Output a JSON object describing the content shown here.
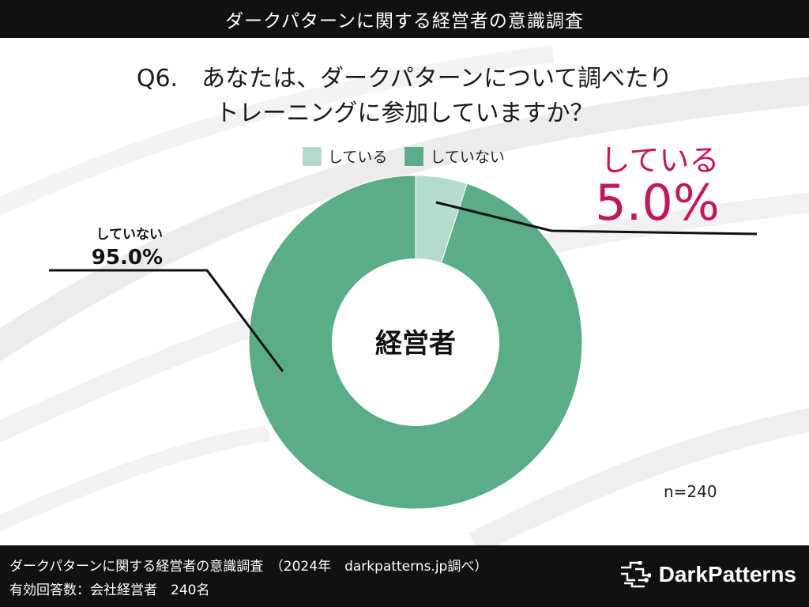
{
  "header": {
    "title": "ダークパターンに関する経営者の意識調査"
  },
  "question": {
    "line1": "Q6.　あなたは、ダークパターンについて調べたり",
    "line2": "トレーニングに参加していますか？"
  },
  "colors": {
    "doing": "#b5dccb",
    "not_doing": "#5bad8a",
    "accent": "#c2185b"
  },
  "chart_data": {
    "type": "pie",
    "donut": true,
    "center_label": "経営者",
    "legend": [
      "している",
      "していない"
    ],
    "legend_position": "top",
    "slices": [
      {
        "label": "している",
        "value": 5.0,
        "display": "5.0%"
      },
      {
        "label": "していない",
        "value": 95.0,
        "display": "95.0%"
      }
    ],
    "sample_size": "n=240"
  },
  "footer": {
    "line1": "ダークパターンに関する経営者の意識調査　（2024年　darkpatterns.jp調べ）",
    "line2": "有効回答数：会社経営者　240名",
    "brand": "DarkPatterns",
    "brand_icon": "circuit-icon"
  }
}
